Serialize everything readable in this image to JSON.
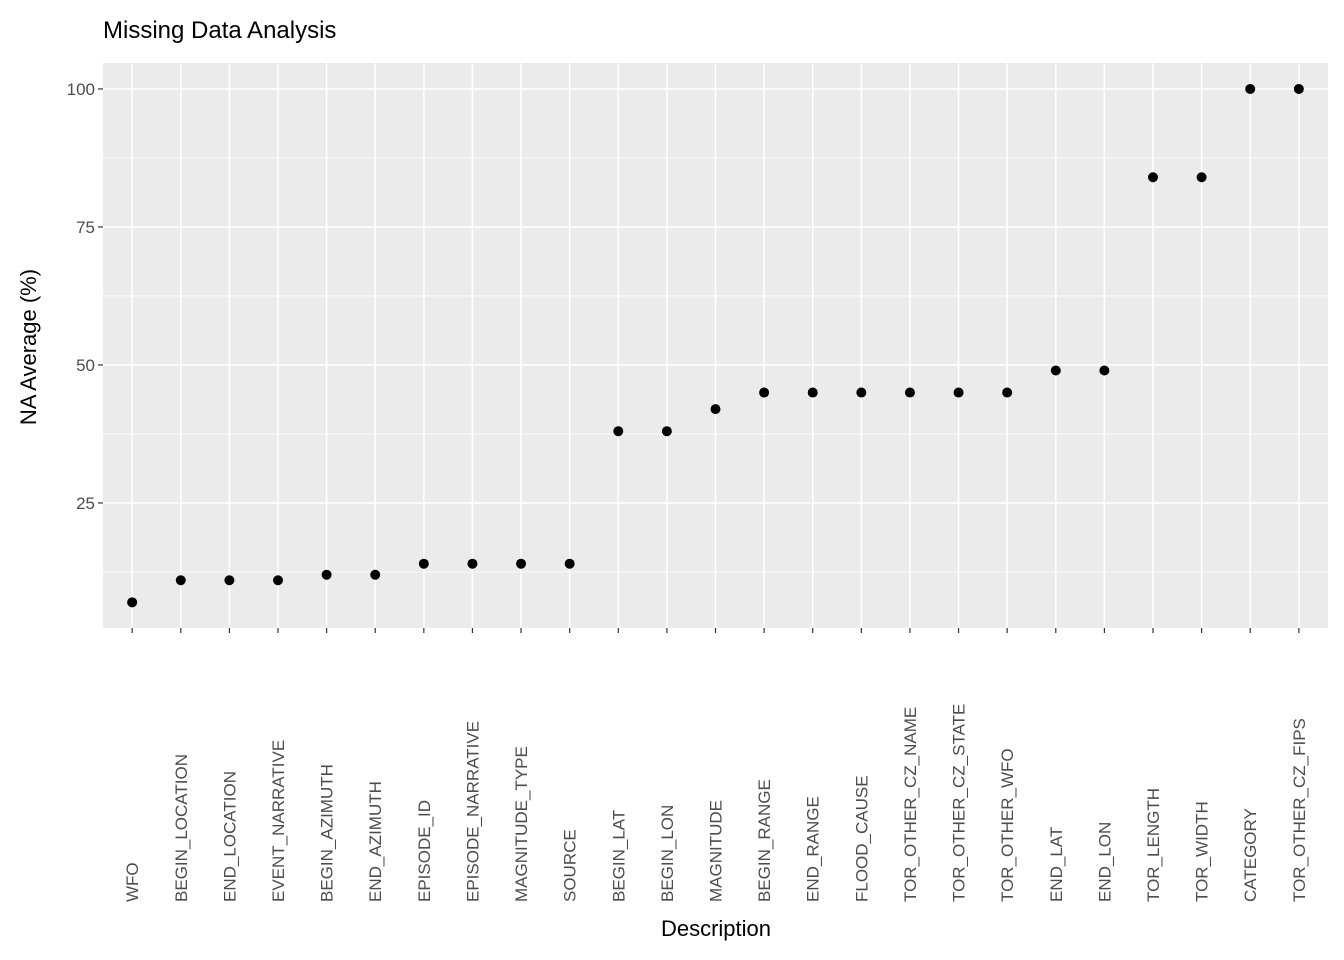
{
  "chart_data": {
    "type": "scatter",
    "title": "Missing Data Analysis",
    "x_label": "Description",
    "y_label": "NA Average (%)",
    "categories": [
      "WFO",
      "BEGIN_LOCATION",
      "END_LOCATION",
      "EVENT_NARRATIVE",
      "BEGIN_AZIMUTH",
      "END_AZIMUTH",
      "EPISODE_ID",
      "EPISODE_NARRATIVE",
      "MAGNITUDE_TYPE",
      "SOURCE",
      "BEGIN_LAT",
      "BEGIN_LON",
      "MAGNITUDE",
      "BEGIN_RANGE",
      "END_RANGE",
      "FLOOD_CAUSE",
      "TOR_OTHER_CZ_NAME",
      "TOR_OTHER_CZ_STATE",
      "TOR_OTHER_WFO",
      "END_LAT",
      "END_LON",
      "TOR_LENGTH",
      "TOR_WIDTH",
      "CATEGORY",
      "TOR_OTHER_CZ_FIPS"
    ],
    "values": [
      7,
      11,
      11,
      11,
      12,
      12,
      14,
      14,
      14,
      14,
      38,
      38,
      42,
      45,
      45,
      45,
      45,
      45,
      45,
      49,
      49,
      84,
      84,
      100,
      100
    ],
    "color": "#000000",
    "ylim": [
      2.35,
      104.7
    ],
    "yticks": [
      25,
      50,
      75,
      100
    ],
    "grid": true
  }
}
